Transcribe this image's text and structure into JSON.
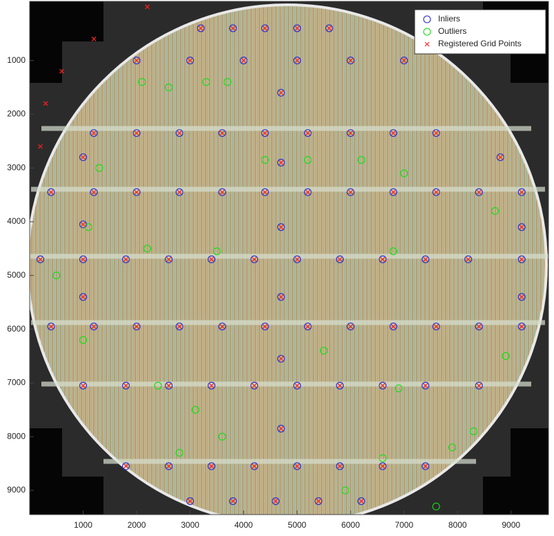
{
  "chart_data": {
    "type": "scatter",
    "xlim": [
      0,
      9700
    ],
    "ylim": [
      -100,
      9450
    ],
    "y_reversed": true,
    "xticks": [
      1000,
      2000,
      3000,
      4000,
      5000,
      6000,
      7000,
      8000,
      9000
    ],
    "yticks": [
      1000,
      2000,
      3000,
      4000,
      5000,
      6000,
      7000,
      8000,
      9000
    ],
    "legend": "northeast",
    "series": [
      {
        "name": "Inliers",
        "marker": "circle",
        "color": "#2a2ad0",
        "x": [
          3200,
          3800,
          4400,
          5000,
          5600,
          2000,
          3000,
          4000,
          5000,
          6000,
          7000,
          1200,
          2000,
          2800,
          3600,
          4400,
          5200,
          6000,
          6800,
          7600,
          400,
          1200,
          2000,
          2800,
          3600,
          4400,
          5200,
          6000,
          6800,
          7600,
          8400,
          9200,
          200,
          1000,
          1800,
          2600,
          3400,
          4200,
          5000,
          5800,
          6600,
          7400,
          8200,
          9200,
          400,
          1200,
          2000,
          2800,
          3600,
          4400,
          5200,
          6000,
          6800,
          7600,
          8400,
          9200,
          1000,
          1800,
          2600,
          3400,
          4200,
          5000,
          5800,
          6600,
          7400,
          8400,
          1800,
          2600,
          3400,
          4200,
          5000,
          5800,
          6600,
          7400,
          3000,
          3800,
          4600,
          5400,
          6200,
          1000,
          1000,
          1000,
          8800,
          9200,
          9200,
          4700,
          4700,
          4700,
          4700,
          4700,
          4700
        ],
        "y": [
          400,
          400,
          400,
          400,
          400,
          1000,
          1000,
          1000,
          1000,
          1000,
          1000,
          2350,
          2350,
          2350,
          2350,
          2350,
          2350,
          2350,
          2350,
          2350,
          3450,
          3450,
          3450,
          3450,
          3450,
          3450,
          3450,
          3450,
          3450,
          3450,
          3450,
          3450,
          4700,
          4700,
          4700,
          4700,
          4700,
          4700,
          4700,
          4700,
          4700,
          4700,
          4700,
          4700,
          5950,
          5950,
          5950,
          5950,
          5950,
          5950,
          5950,
          5950,
          5950,
          5950,
          5950,
          5950,
          7050,
          7050,
          7050,
          7050,
          7050,
          7050,
          7050,
          7050,
          7050,
          7050,
          8550,
          8550,
          8550,
          8550,
          8550,
          8550,
          8550,
          8550,
          9200,
          9200,
          9200,
          9200,
          9200,
          2800,
          4050,
          5400,
          2800,
          4100,
          5400,
          1600,
          2900,
          4100,
          5400,
          6550,
          7850
        ]
      },
      {
        "name": "Outliers",
        "marker": "circle",
        "color": "#10e010",
        "x": [
          2100,
          2600,
          3300,
          3700,
          4400,
          5200,
          6200,
          1300,
          7000,
          1100,
          500,
          8700,
          2200,
          3500,
          6800,
          5500,
          2400,
          3100,
          6900,
          7900,
          8300,
          2800,
          6600,
          5900,
          7600,
          1000,
          8900,
          3600
        ],
        "y": [
          1400,
          1500,
          1400,
          1400,
          2850,
          2850,
          2850,
          3000,
          3100,
          4100,
          5000,
          3800,
          4500,
          4550,
          4550,
          6400,
          7050,
          7500,
          7100,
          8200,
          7900,
          8300,
          8400,
          9000,
          9300,
          6200,
          6500,
          8000
        ]
      },
      {
        "name": "Registered Grid Points",
        "marker": "x",
        "color": "#ff2020",
        "x": [
          3200,
          3800,
          4400,
          5000,
          5600,
          2000,
          3000,
          4000,
          5000,
          6000,
          7000,
          1200,
          2000,
          2800,
          3600,
          4400,
          5200,
          6000,
          6800,
          7600,
          400,
          1200,
          2000,
          2800,
          3600,
          4400,
          5200,
          6000,
          6800,
          7600,
          8400,
          9200,
          200,
          1000,
          1800,
          2600,
          3400,
          4200,
          5000,
          5800,
          6600,
          7400,
          8200,
          9200,
          400,
          1200,
          2000,
          2800,
          3600,
          4400,
          5200,
          6000,
          6800,
          7600,
          8400,
          9200,
          1000,
          1800,
          2600,
          3400,
          4200,
          5000,
          5800,
          6600,
          7400,
          8400,
          1800,
          2600,
          3400,
          4200,
          5000,
          5800,
          6600,
          7400,
          3000,
          3800,
          4600,
          5400,
          6200,
          1000,
          1000,
          1000,
          8800,
          9200,
          9200,
          4700,
          4700,
          4700,
          4700,
          4700,
          4700,
          300,
          600,
          1200,
          200,
          2200
        ],
        "y": [
          400,
          400,
          400,
          400,
          400,
          1000,
          1000,
          1000,
          1000,
          1000,
          1000,
          2350,
          2350,
          2350,
          2350,
          2350,
          2350,
          2350,
          2350,
          2350,
          3450,
          3450,
          3450,
          3450,
          3450,
          3450,
          3450,
          3450,
          3450,
          3450,
          3450,
          3450,
          4700,
          4700,
          4700,
          4700,
          4700,
          4700,
          4700,
          4700,
          4700,
          4700,
          4700,
          4700,
          5950,
          5950,
          5950,
          5950,
          5950,
          5950,
          5950,
          5950,
          5950,
          5950,
          5950,
          5950,
          7050,
          7050,
          7050,
          7050,
          7050,
          7050,
          7050,
          7050,
          7050,
          7050,
          8550,
          8550,
          8550,
          8550,
          8550,
          8550,
          8550,
          8550,
          9200,
          9200,
          9200,
          9200,
          9200,
          2800,
          4050,
          5400,
          2800,
          4100,
          5400,
          1600,
          2900,
          4100,
          5400,
          6550,
          7850,
          1800,
          1200,
          600,
          2600,
          0
        ]
      }
    ]
  }
}
